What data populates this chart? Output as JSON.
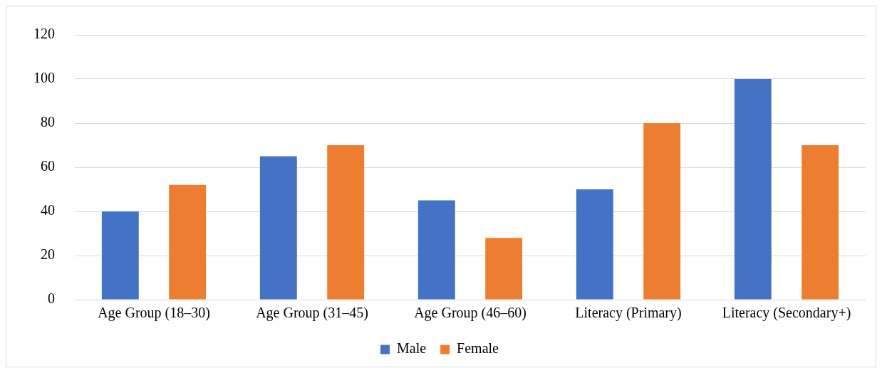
{
  "chart_data": {
    "type": "bar",
    "categories": [
      "Age Group (18–30)",
      "Age Group (31–45)",
      "Age Group (46–60)",
      "Literacy (Primary)",
      "Literacy (Secondary+)"
    ],
    "series": [
      {
        "name": "Male",
        "color": "#4472c4",
        "values": [
          40,
          65,
          45,
          50,
          100
        ]
      },
      {
        "name": "Female",
        "color": "#ed7d31",
        "values": [
          52,
          70,
          28,
          80,
          70
        ]
      }
    ],
    "ylim": [
      0,
      120
    ],
    "yticks": [
      0,
      20,
      40,
      60,
      80,
      100,
      120
    ],
    "grid": "y",
    "legend": "bottom"
  }
}
